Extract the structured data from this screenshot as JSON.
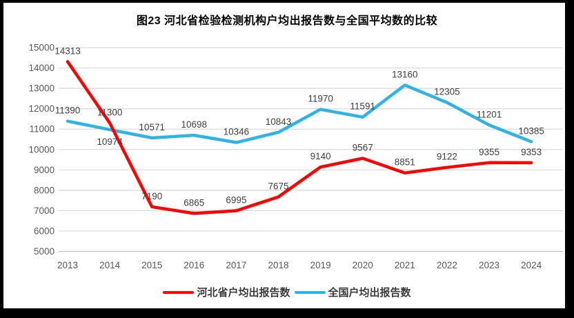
{
  "window": {
    "background": "#000000",
    "panel_background": "#ffffff"
  },
  "title": "图23  河北省检验检测机构户均出报告数与全国平均数的比较",
  "chart_data": {
    "type": "line",
    "title": "图23  河北省检验检测机构户均出报告数与全国平均数的比较",
    "x": [
      "2013",
      "2014",
      "2015",
      "2016",
      "2017",
      "2018",
      "2019",
      "2020",
      "2021",
      "2022",
      "2023",
      "2024"
    ],
    "series": [
      {
        "name": "河北省户均出报告数",
        "color": "#FE0000",
        "values": [
          14313,
          11300,
          7190,
          6865,
          6995,
          7675,
          9140,
          9567,
          8851,
          9122,
          9355,
          9353
        ],
        "labels_below": []
      },
      {
        "name": "全国户均出报告数",
        "color": "#2EB3E8",
        "values": [
          11390,
          10974,
          10571,
          10698,
          10346,
          10843,
          11970,
          11591,
          13160,
          12305,
          11201,
          10385
        ],
        "labels_below": [
          1
        ]
      }
    ],
    "ylim": [
      5000,
      15000
    ],
    "ytick_step": 1000,
    "yticks": [
      5000,
      6000,
      7000,
      8000,
      9000,
      10000,
      11000,
      12000,
      13000,
      14000,
      15000
    ],
    "xlabel": "",
    "ylabel": "",
    "grid": true,
    "data_labels": true,
    "legend_position": "bottom",
    "colors": {
      "grid": "#D9D9D9",
      "axis_line": "#BFBFBF",
      "tick_label": "#595959",
      "data_label": "#404040"
    }
  }
}
